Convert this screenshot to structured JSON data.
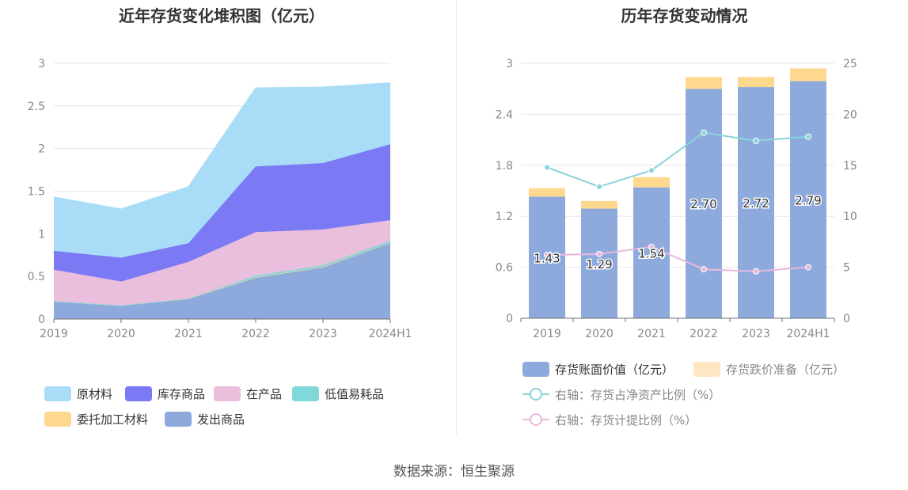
{
  "source": "数据来源：恒生聚源",
  "chart_data": [
    {
      "type": "area",
      "stacked": true,
      "title": "近年存货变化堆积图（亿元）",
      "categories": [
        "2019",
        "2020",
        "2021",
        "2022",
        "2023",
        "2024H1"
      ],
      "ylim": [
        0,
        3
      ],
      "yticks": [
        "0",
        "0.5",
        "1",
        "1.5",
        "2",
        "2.5",
        "3"
      ],
      "ytick_values": [
        0,
        0.5,
        1,
        1.5,
        2,
        2.5,
        3
      ],
      "series": [
        {
          "name": "发出商品",
          "color": "#8eaadc",
          "values": [
            0.21,
            0.16,
            0.24,
            0.49,
            0.61,
            0.9
          ]
        },
        {
          "name": "委托加工材料",
          "color": "#ffd890",
          "values": [
            0,
            0,
            0,
            0,
            0,
            0
          ]
        },
        {
          "name": "低值易耗品",
          "color": "#80d8da",
          "values": [
            0,
            0,
            0,
            0.02,
            0.02,
            0.02
          ]
        },
        {
          "name": "在产品",
          "color": "#eabfdd",
          "values": [
            0.37,
            0.28,
            0.43,
            0.51,
            0.42,
            0.24
          ]
        },
        {
          "name": "库存商品",
          "color": "#7b79f3",
          "values": [
            0.22,
            0.28,
            0.22,
            0.77,
            0.78,
            0.89
          ]
        },
        {
          "name": "原材料",
          "color": "#a9ddf7",
          "values": [
            0.63,
            0.57,
            0.66,
            0.92,
            0.89,
            0.72
          ]
        }
      ],
      "legend": [
        "原材料",
        "库存商品",
        "在产品",
        "低值易耗品",
        "委托加工材料",
        "发出商品"
      ]
    },
    {
      "type": "bar",
      "stacked": true,
      "title": "历年存货变动情况",
      "categories": [
        "2019",
        "2020",
        "2021",
        "2022",
        "2023",
        "2024H1"
      ],
      "ylim": [
        0,
        3
      ],
      "yticks": [
        "0",
        "0.6",
        "1.2",
        "1.8",
        "2.4",
        "3"
      ],
      "ytick_values": [
        0,
        0.6,
        1.2,
        1.8,
        2.4,
        3
      ],
      "y2lim": [
        0,
        25
      ],
      "y2ticks": [
        "0",
        "5",
        "10",
        "15",
        "20",
        "25"
      ],
      "y2tick_values": [
        0,
        5,
        10,
        15,
        20,
        25
      ],
      "series": [
        {
          "name": "存货账面价值（亿元）",
          "color": "#8eaadc",
          "axis": "left",
          "type": "bar",
          "values": [
            1.43,
            1.29,
            1.54,
            2.7,
            2.72,
            2.79
          ],
          "labels": [
            "1.43",
            "1.29",
            "1.54",
            "2.70",
            "2.72",
            "2.79"
          ]
        },
        {
          "name": "存货跌价准备（亿元）",
          "color": "#ffd890",
          "axis": "left",
          "type": "bar",
          "values": [
            0.1,
            0.09,
            0.12,
            0.14,
            0.12,
            0.15
          ]
        },
        {
          "name": "右轴：存货占净资产比例（%）",
          "color": "#88d4d8",
          "axis": "right",
          "type": "line",
          "values": [
            14.8,
            12.9,
            14.5,
            18.2,
            17.4,
            17.8
          ]
        },
        {
          "name": "右轴：存货计提比例（%）",
          "color": "#e7b8dd",
          "axis": "right",
          "type": "line",
          "values": [
            6.2,
            6.3,
            7.0,
            4.8,
            4.6,
            5.0
          ]
        }
      ]
    }
  ]
}
